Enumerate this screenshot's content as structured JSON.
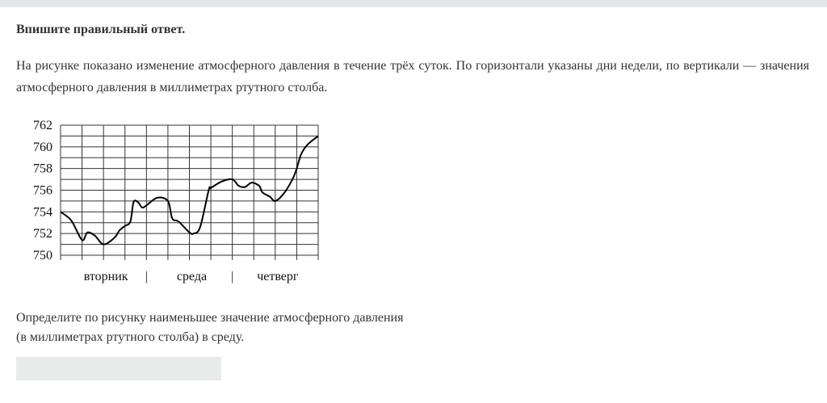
{
  "instruction": "Впишите правильный ответ.",
  "description": "На рисунке показано изменение атмосферного давления в течение трёх суток. По горизонтали указаны дни недели, по вертикали —  значения атмосферного давления в миллиметрах ртутного столба.",
  "question_line1": "Определите по рисунку наименьшее значение атмосферного давления",
  "question_line2": "(в миллиметрах ртутного столба) в среду.",
  "answer": {
    "value": "",
    "placeholder": ""
  },
  "chart_data": {
    "type": "line",
    "title": "",
    "xlabel": "",
    "ylabel": "",
    "ylim": [
      750,
      762
    ],
    "yticks": [
      "750",
      "752",
      "754",
      "756",
      "758",
      "760",
      "762"
    ],
    "xlim": [
      0,
      12
    ],
    "x_unit_note_hidden": "",
    "categories": [
      "вторник",
      "среда",
      "четверг"
    ],
    "grid": true,
    "line_color": "#000000",
    "series": [
      {
        "x": [
          0,
          0.5,
          1,
          1.25,
          1.6,
          2,
          2.5,
          2.75,
          3,
          3.25,
          3.4,
          3.6,
          3.8,
          4,
          4.5,
          5,
          5.2,
          5.5,
          6,
          6.2,
          6.5,
          6.9,
          7,
          7.5,
          8,
          8.3,
          8.6,
          8.9,
          9.25,
          9.4,
          9.75,
          10,
          10.4,
          10.8,
          11,
          11.2,
          11.5,
          12
        ],
        "y": [
          754,
          753.2,
          751.4,
          752.1,
          751.8,
          751,
          751.6,
          752.3,
          752.7,
          753.1,
          754.9,
          754.9,
          754.4,
          754.6,
          755.3,
          755,
          753.4,
          753.1,
          752.1,
          752,
          752.6,
          756,
          756.2,
          756.8,
          757,
          756.4,
          756.3,
          756.7,
          756.4,
          755.8,
          755.4,
          755,
          755.7,
          757,
          758,
          759.3,
          760.2,
          761
        ]
      }
    ]
  }
}
